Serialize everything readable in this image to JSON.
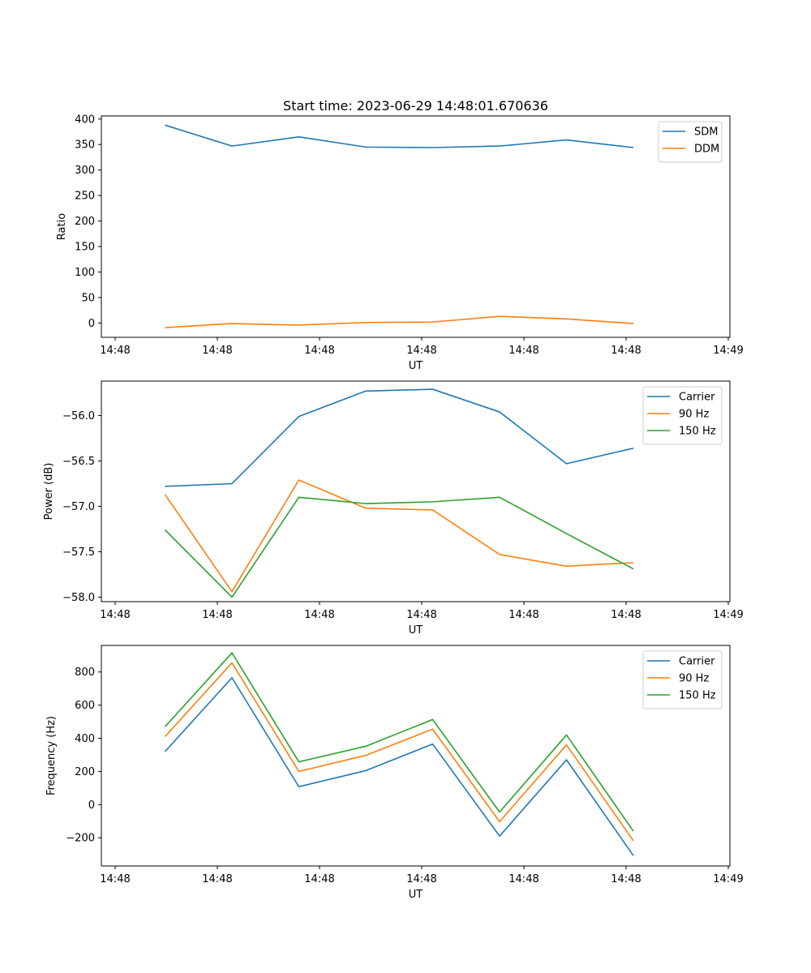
{
  "figure": {
    "title": "Start time: 2023-06-29 14:48:01.670636"
  },
  "chart_data": [
    {
      "type": "line",
      "title": "Start time: 2023-06-29 14:48:01.670636",
      "xlabel": "UT",
      "ylabel": "Ratio",
      "x_tick_labels": [
        "14:48",
        "14:48",
        "14:48",
        "14:48",
        "14:48",
        "14:48",
        "14:49"
      ],
      "y_ticks": [
        0,
        50,
        100,
        150,
        200,
        250,
        300,
        350,
        400
      ],
      "ylim": [
        -28,
        406
      ],
      "legend_position": "top-right",
      "grid": false,
      "series": [
        {
          "name": "SDM",
          "color": "#1f77b4",
          "values": [
            388,
            347,
            365,
            345,
            344,
            347,
            359,
            344
          ]
        },
        {
          "name": "DDM",
          "color": "#ff7f0e",
          "values": [
            -9,
            -1,
            -4,
            1,
            2,
            13,
            8,
            -1
          ]
        }
      ]
    },
    {
      "type": "line",
      "xlabel": "UT",
      "ylabel": "Power (dB)",
      "x_tick_labels": [
        "14:48",
        "14:48",
        "14:48",
        "14:48",
        "14:48",
        "14:48",
        "14:49"
      ],
      "y_ticks": [
        -58.0,
        -57.5,
        -57.0,
        -56.5,
        -56.0
      ],
      "y_tick_labels": [
        "−58.0",
        "−57.5",
        "−57.0",
        "−56.5",
        "−56.0"
      ],
      "ylim": [
        -58.05,
        -55.62
      ],
      "legend_position": "top-right",
      "grid": false,
      "series": [
        {
          "name": "Carrier",
          "color": "#1f77b4",
          "values": [
            -56.78,
            -56.75,
            -56.01,
            -55.73,
            -55.71,
            -55.96,
            -56.53,
            -56.36
          ]
        },
        {
          "name": "90 Hz",
          "color": "#ff7f0e",
          "values": [
            -56.87,
            -57.94,
            -56.71,
            -57.02,
            -57.04,
            -57.53,
            -57.66,
            -57.62
          ]
        },
        {
          "name": "150 Hz",
          "color": "#2ca02c",
          "values": [
            -57.26,
            -58.0,
            -56.9,
            -56.97,
            -56.95,
            -56.9,
            -57.3,
            -57.69
          ]
        }
      ]
    },
    {
      "type": "line",
      "xlabel": "UT",
      "ylabel": "Frequency (Hz)",
      "x_tick_labels": [
        "14:48",
        "14:48",
        "14:48",
        "14:48",
        "14:48",
        "14:48",
        "14:49"
      ],
      "y_ticks": [
        -200,
        0,
        200,
        400,
        600,
        800
      ],
      "y_tick_labels": [
        "−200",
        "0",
        "200",
        "400",
        "600",
        "800"
      ],
      "ylim": [
        -370,
        960
      ],
      "legend_position": "top-right",
      "grid": false,
      "series": [
        {
          "name": "Carrier",
          "color": "#1f77b4",
          "values": [
            320,
            765,
            108,
            205,
            365,
            -190,
            270,
            -308
          ]
        },
        {
          "name": "90 Hz",
          "color": "#ff7f0e",
          "values": [
            410,
            855,
            200,
            297,
            455,
            -103,
            360,
            -218
          ]
        },
        {
          "name": "150 Hz",
          "color": "#2ca02c",
          "values": [
            470,
            915,
            258,
            352,
            513,
            -45,
            420,
            -160
          ]
        }
      ]
    }
  ]
}
